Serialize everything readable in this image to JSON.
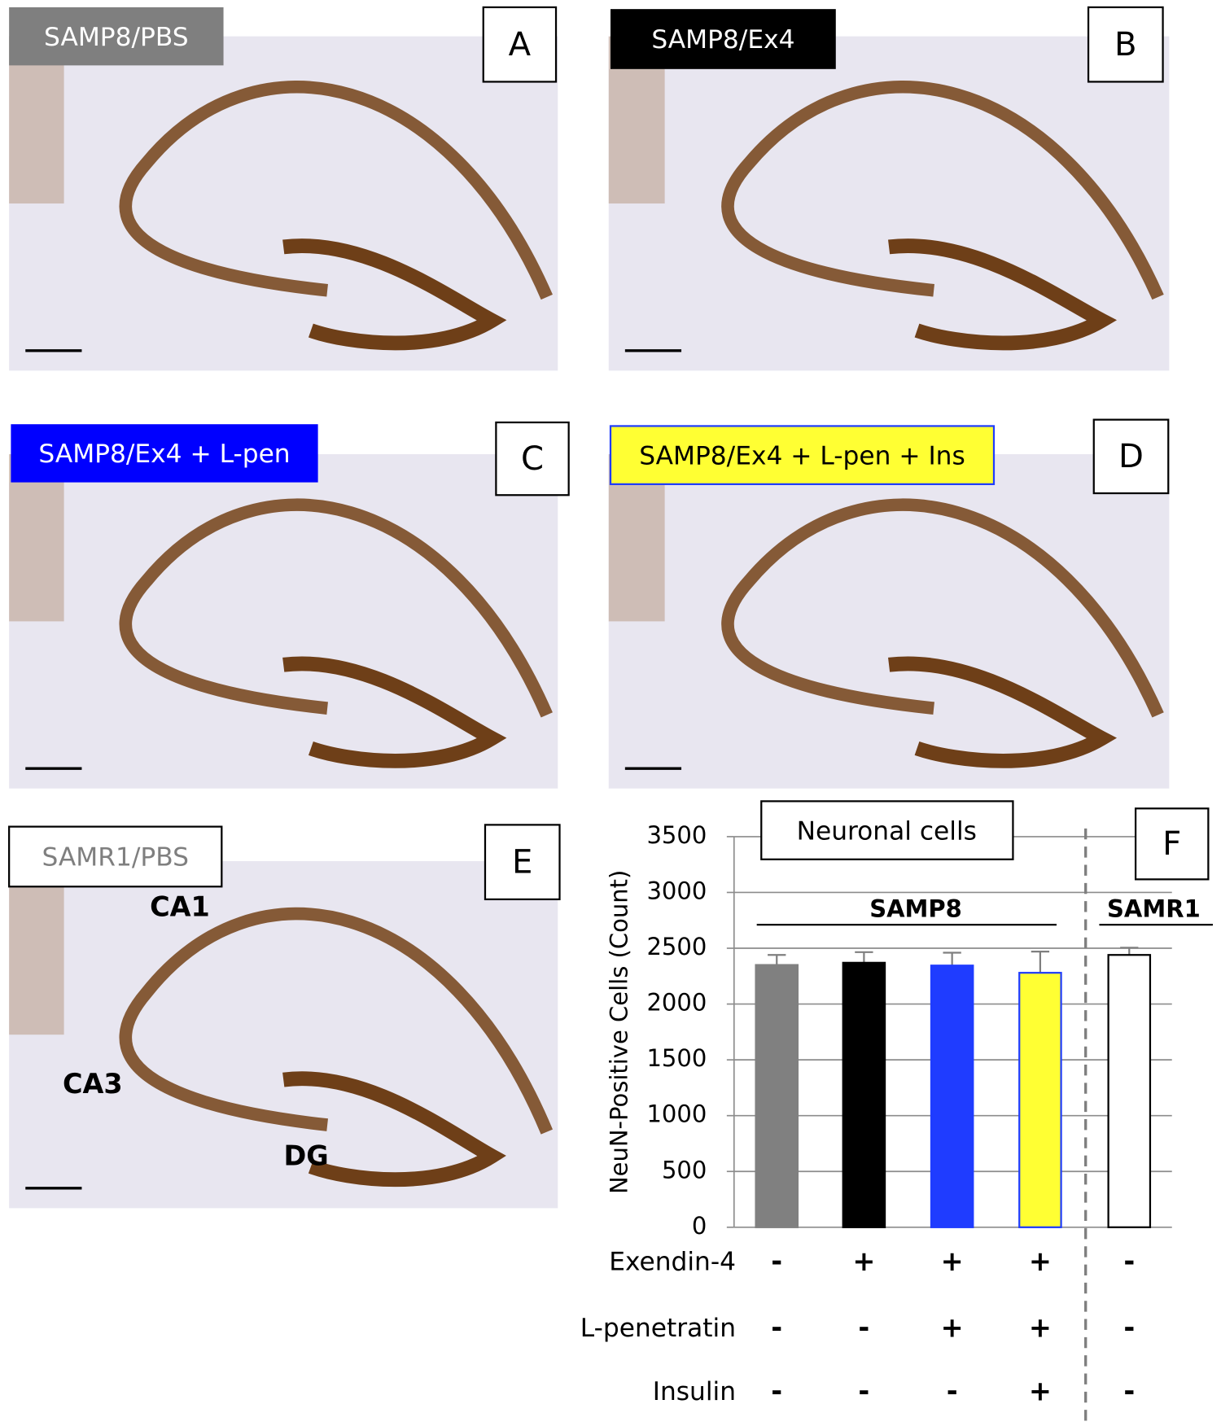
{
  "panels": [
    {
      "label": "SAMP8/PBS",
      "letter": "A"
    },
    {
      "label": "SAMP8/Ex4",
      "letter": "B"
    },
    {
      "label": "SAMP8/Ex4 + L-pen",
      "letter": "C"
    },
    {
      "label": "SAMP8/Ex4 + L-pen + Ins",
      "letter": "D"
    },
    {
      "label": "SAMR1/PBS",
      "letter": "E"
    }
  ],
  "region_labels": [
    "CA1",
    "CA3",
    "DG"
  ],
  "chart_data": {
    "type": "bar",
    "title": "Neuronal cells",
    "panel_letter": "F",
    "y_label": "NeuN-Positive Cells (Count)",
    "values": [
      2350,
      2370,
      2345,
      2280,
      2440
    ],
    "errors": [
      90,
      95,
      115,
      190,
      65
    ],
    "colors": [
      "#808080",
      "#000000",
      "#1f3cff",
      "#ffff33",
      "#ffffff"
    ],
    "edgecolors": [
      "#808080",
      "#000000",
      "#1f3cff",
      "#1f3cff",
      "#000000"
    ],
    "ylim": [
      0,
      3500
    ],
    "yticks": [
      0,
      500,
      1000,
      1500,
      2000,
      2500,
      3000,
      3500
    ],
    "grid": true,
    "groups": [
      "SAMP8",
      "SAMR1"
    ],
    "treatments": [
      {
        "name": "Exendin-4",
        "signs": [
          "-",
          "+",
          "+",
          "+",
          "-"
        ]
      },
      {
        "name": "L-penetratin",
        "signs": [
          "-",
          "-",
          "+",
          "+",
          "-"
        ]
      },
      {
        "name": "Insulin",
        "signs": [
          "-",
          "-",
          "-",
          "+",
          "-"
        ]
      }
    ]
  }
}
